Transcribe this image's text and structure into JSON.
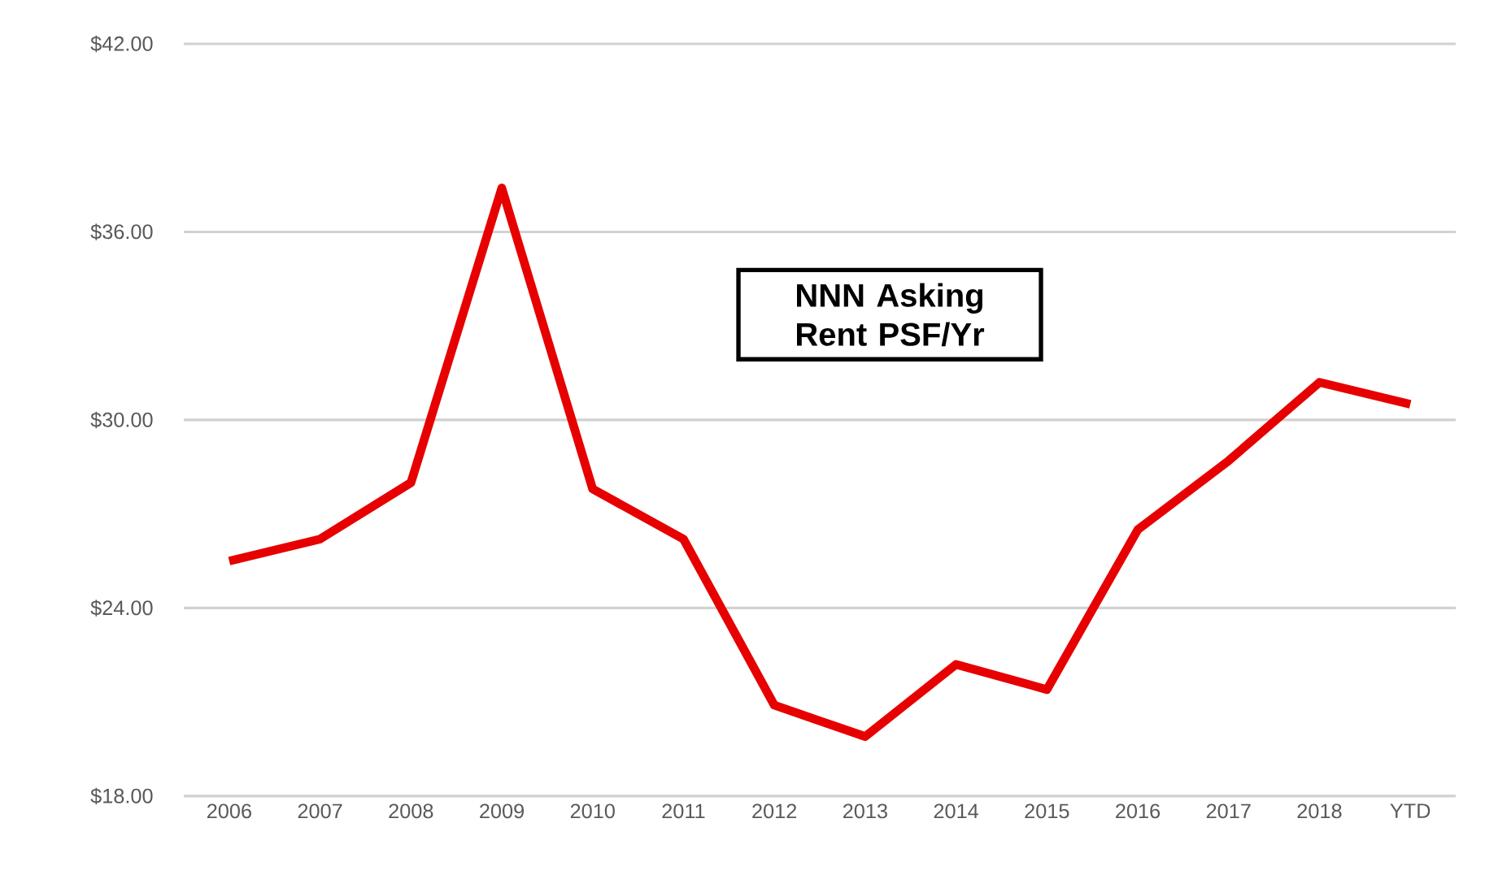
{
  "chart_data": {
    "type": "line",
    "categories": [
      "2006",
      "2007",
      "2008",
      "2009",
      "2010",
      "2011",
      "2012",
      "2013",
      "2014",
      "2015",
      "2016",
      "2017",
      "2018",
      "YTD"
    ],
    "series": [
      {
        "color": "#e60000",
        "values": [
          25.5,
          26.2,
          28.0,
          37.4,
          27.8,
          26.2,
          20.9,
          19.9,
          22.2,
          21.4,
          26.5,
          28.7,
          31.2,
          30.5
        ]
      }
    ],
    "ylim": [
      18,
      42
    ],
    "yticks": [
      {
        "value": 18,
        "label": "$18.00"
      },
      {
        "value": 24,
        "label": "$24.00"
      },
      {
        "value": 30,
        "label": "$30.00"
      },
      {
        "value": 36,
        "label": "$36.00"
      },
      {
        "value": 42,
        "label": "$42.00"
      }
    ],
    "grid": "y",
    "marker": "none",
    "line_style": "solid",
    "annotations": [
      "NNN Asking Rent PSF/Yr"
    ]
  }
}
